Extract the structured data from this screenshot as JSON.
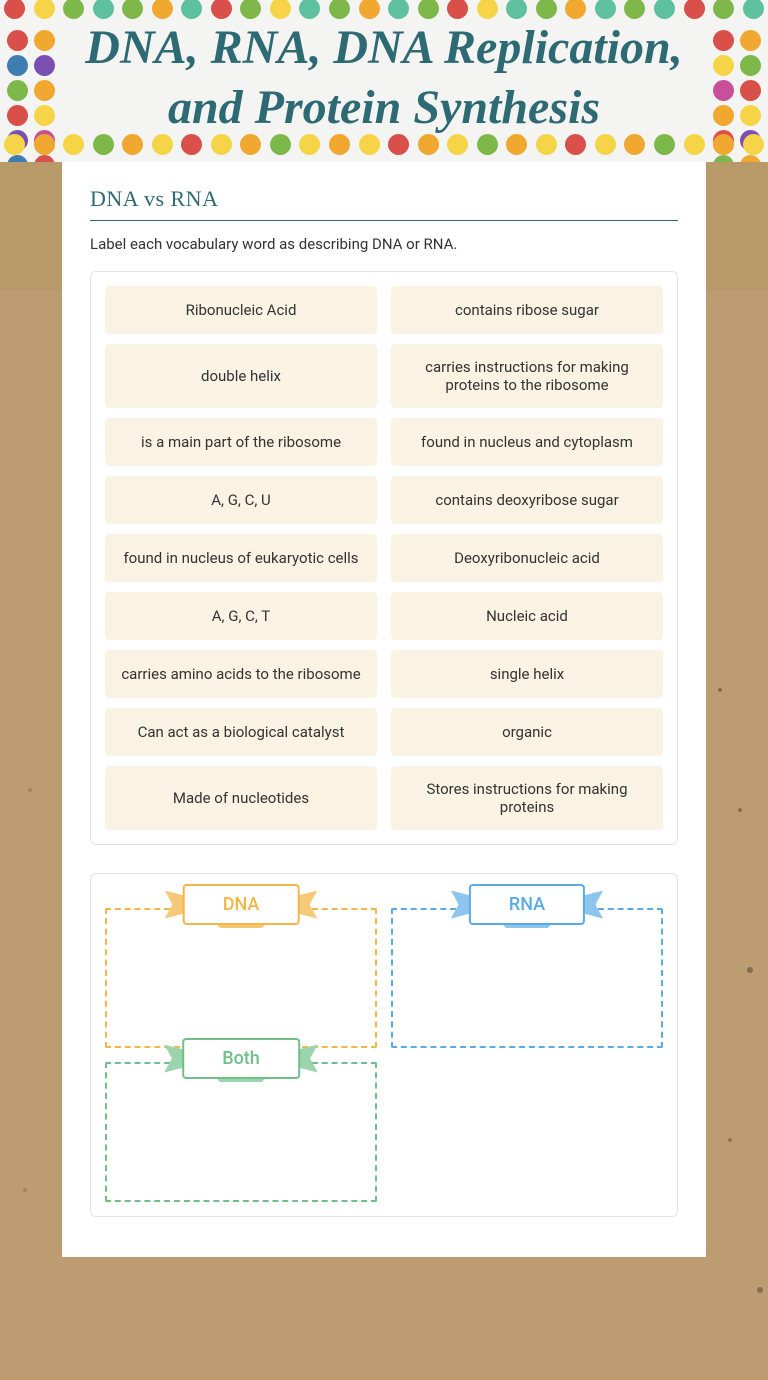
{
  "header": {
    "title": "DNA, RNA, DNA Replication, and Protein Synthesis"
  },
  "section": {
    "title": "DNA vs RNA",
    "instruction": "Label each vocabulary word as describing DNA or RNA."
  },
  "cards": [
    "Ribonucleic Acid",
    "contains ribose sugar",
    "double helix",
    "carries instructions for making proteins to the ribosome",
    "is a main part of the ribosome",
    "found in nucleus and cytoplasm",
    "A, G, C, U",
    "contains deoxyribose sugar",
    "found in nucleus of eukaryotic cells",
    "Deoxyribonucleic acid",
    "A, G, C, T",
    "Nucleic acid",
    "carries amino acids to the ribosome",
    "single helix",
    "Can act as a biological catalyst",
    "organic",
    "Made of nucleotides",
    "Stores instructions for making proteins"
  ],
  "dropzones": {
    "dna": "DNA",
    "rna": "RNA",
    "both": "Both"
  },
  "colors": {
    "title": "#2d6a73",
    "card_bg": "#faf3e3",
    "dna": "#f5b547",
    "rna": "#5aaae6",
    "both": "#6fc088",
    "cardboard": "#bd9c72"
  }
}
